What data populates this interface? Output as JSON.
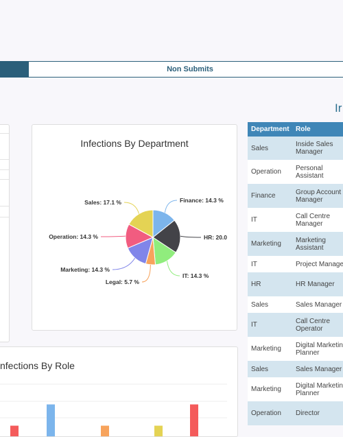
{
  "tabs": {
    "active_label": "",
    "inactive_label": "Non Submits"
  },
  "right_heading": "Ir",
  "pie_chart": {
    "title": "Infections By Department",
    "chart_data": {
      "type": "pie",
      "slices": [
        {
          "label": "Finance: 14.3 %",
          "value": 14.3,
          "color": "#7cb5ec"
        },
        {
          "label": "HR: 20.0",
          "value": 20.0,
          "color": "#434348"
        },
        {
          "label": "IT: 14.3 %",
          "value": 14.3,
          "color": "#90ed7d"
        },
        {
          "label": "Legal: 5.7 %",
          "value": 5.7,
          "color": "#f7a35c"
        },
        {
          "label": "Marketing: 14.3 %",
          "value": 14.3,
          "color": "#8085e9"
        },
        {
          "label": "Operation: 14.3 %",
          "value": 14.3,
          "color": "#f15c80"
        },
        {
          "label": "Sales: 17.1 %",
          "value": 17.1,
          "color": "#e4d354"
        }
      ]
    }
  },
  "role_chart": {
    "title": "nfections By Role",
    "chart_data": {
      "type": "bar",
      "bars": [
        {
          "value": 1,
          "color": "#f45b5b"
        },
        {
          "value": 3,
          "color": "#7cb5ec"
        },
        {
          "value": 1,
          "color": "#f7a35c"
        },
        {
          "value": 1,
          "color": "#e4d354"
        },
        {
          "value": 3,
          "color": "#f45b5b"
        }
      ]
    }
  },
  "table": {
    "headers": [
      "Department",
      "Role"
    ],
    "rows": [
      {
        "dept": "Sales",
        "role": [
          "Inside Sales",
          "Manager"
        ]
      },
      {
        "dept": "Operation",
        "role": [
          "Personal",
          "Assistant"
        ]
      },
      {
        "dept": "Finance",
        "role": [
          "Group Account",
          "Manager"
        ]
      },
      {
        "dept": "IT",
        "role": [
          "Call Centre",
          "Manager"
        ]
      },
      {
        "dept": "Marketing",
        "role": [
          "Marketing",
          "Assistant"
        ]
      },
      {
        "dept": "IT",
        "role": [
          "Project Manage"
        ]
      },
      {
        "dept": "HR",
        "role": [
          "HR Manager"
        ]
      },
      {
        "dept": "Sales",
        "role": [
          "Sales Manager"
        ]
      },
      {
        "dept": "IT",
        "role": [
          "Call Centre",
          "Operator"
        ]
      },
      {
        "dept": "Marketing",
        "role": [
          "Digital Marketin",
          "Planner"
        ]
      },
      {
        "dept": "Sales",
        "role": [
          "Sales Manager"
        ]
      },
      {
        "dept": "Marketing",
        "role": [
          "Digital Marketin",
          "Planner"
        ]
      },
      {
        "dept": "Operation",
        "role": [
          "Director"
        ]
      }
    ]
  }
}
